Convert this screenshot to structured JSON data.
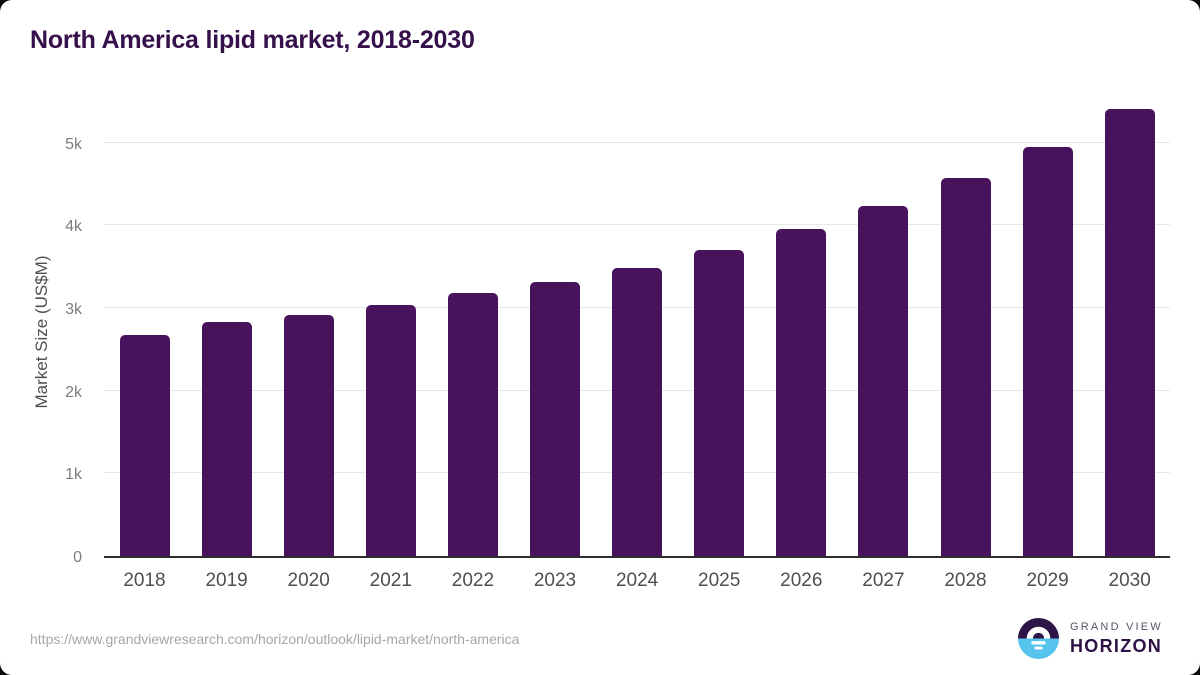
{
  "chart_data": {
    "type": "bar",
    "title": "North America lipid market, 2018-2030",
    "xlabel": "",
    "ylabel": "Market Size (US$M)",
    "categories": [
      "2018",
      "2019",
      "2020",
      "2021",
      "2022",
      "2023",
      "2024",
      "2025",
      "2026",
      "2027",
      "2028",
      "2029",
      "2030"
    ],
    "values": [
      2670,
      2830,
      2915,
      3035,
      3180,
      3315,
      3485,
      3700,
      3950,
      4235,
      4565,
      4950,
      5400
    ],
    "unit": "US$M",
    "ylim": [
      0,
      5500
    ],
    "y_ticks": [
      {
        "value": 0,
        "label": "0"
      },
      {
        "value": 1000,
        "label": "1k"
      },
      {
        "value": 2000,
        "label": "2k"
      },
      {
        "value": 3000,
        "label": "3k"
      },
      {
        "value": 4000,
        "label": "4k"
      },
      {
        "value": 5000,
        "label": "5k"
      }
    ],
    "grid": true,
    "legend": false,
    "bar_color": "#49125c"
  },
  "footer": {
    "source_url": "https://www.grandviewresearch.com/horizon/outlook/lipid-market/north-america",
    "logo": {
      "brand_line1": "GRAND VIEW",
      "brand_line2": "HORIZON"
    }
  },
  "colors": {
    "bar": "#49125c",
    "title": "#35104a",
    "axis_label": "#4f4f4f",
    "tick_label": "#7d7d7d",
    "gridline": "#e8e8e8",
    "baseline": "#2f2f2f",
    "footer_url": "#a6a6a6",
    "logo_blue": "#57c4ee",
    "logo_purple": "#2e1547"
  }
}
